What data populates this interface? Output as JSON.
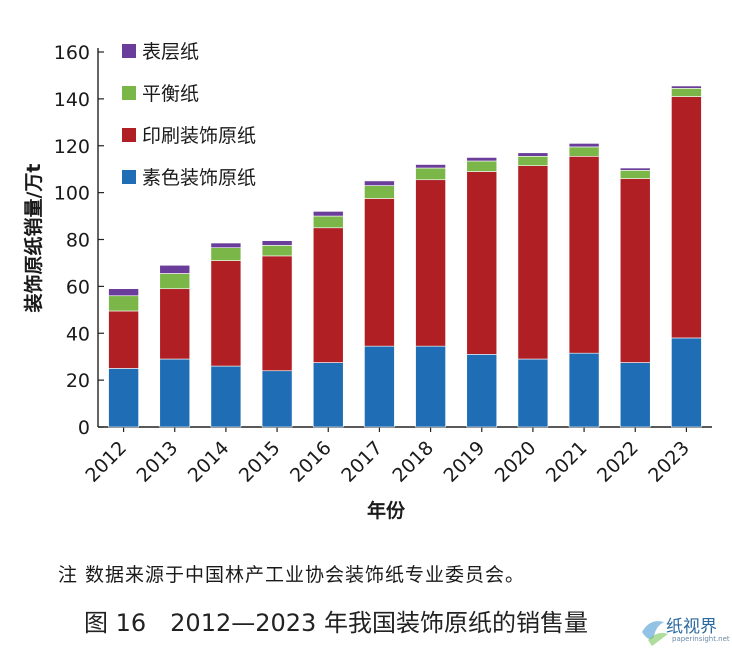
{
  "chart_data": {
    "type": "bar",
    "stacked": true,
    "categories": [
      "2012",
      "2013",
      "2014",
      "2015",
      "2016",
      "2017",
      "2018",
      "2019",
      "2020",
      "2021",
      "2022",
      "2023"
    ],
    "series": [
      {
        "name": "素色装饰原纸",
        "color": "#1f6db5",
        "values": [
          25,
          29,
          26,
          24,
          27.5,
          34.5,
          34.5,
          31,
          29,
          31.5,
          27.5,
          38
        ]
      },
      {
        "name": "印刷装饰原纸",
        "color": "#b01f24",
        "values": [
          24.5,
          30,
          45,
          49,
          57.5,
          63,
          71,
          78,
          82.5,
          84,
          78.5,
          103
        ]
      },
      {
        "name": "平衡纸",
        "color": "#7ab648",
        "values": [
          6.5,
          6.5,
          5.5,
          4.5,
          5,
          5.5,
          5,
          4.5,
          4,
          4,
          3.5,
          3.5
        ]
      },
      {
        "name": "表层纸",
        "color": "#6b3d9a",
        "values": [
          3,
          3.5,
          2,
          2,
          2,
          2,
          1.5,
          1.5,
          1.5,
          1.5,
          1,
          1
        ]
      }
    ],
    "ylabel": "装饰原纸销量/万t",
    "xlabel": "年份",
    "ylim": [
      0,
      160
    ],
    "yticks": [
      0,
      20,
      40,
      60,
      80,
      100,
      120,
      140,
      160
    ],
    "grid": false,
    "legend_position": "top-left"
  },
  "note": "注 数据来源于中国林产工业协会装饰纸专业委员会。",
  "figure_title": "图 16　2012—2023 年我国装饰原纸的销售量",
  "watermark": {
    "text": "纸视界",
    "sub": "paperinsight.net"
  }
}
